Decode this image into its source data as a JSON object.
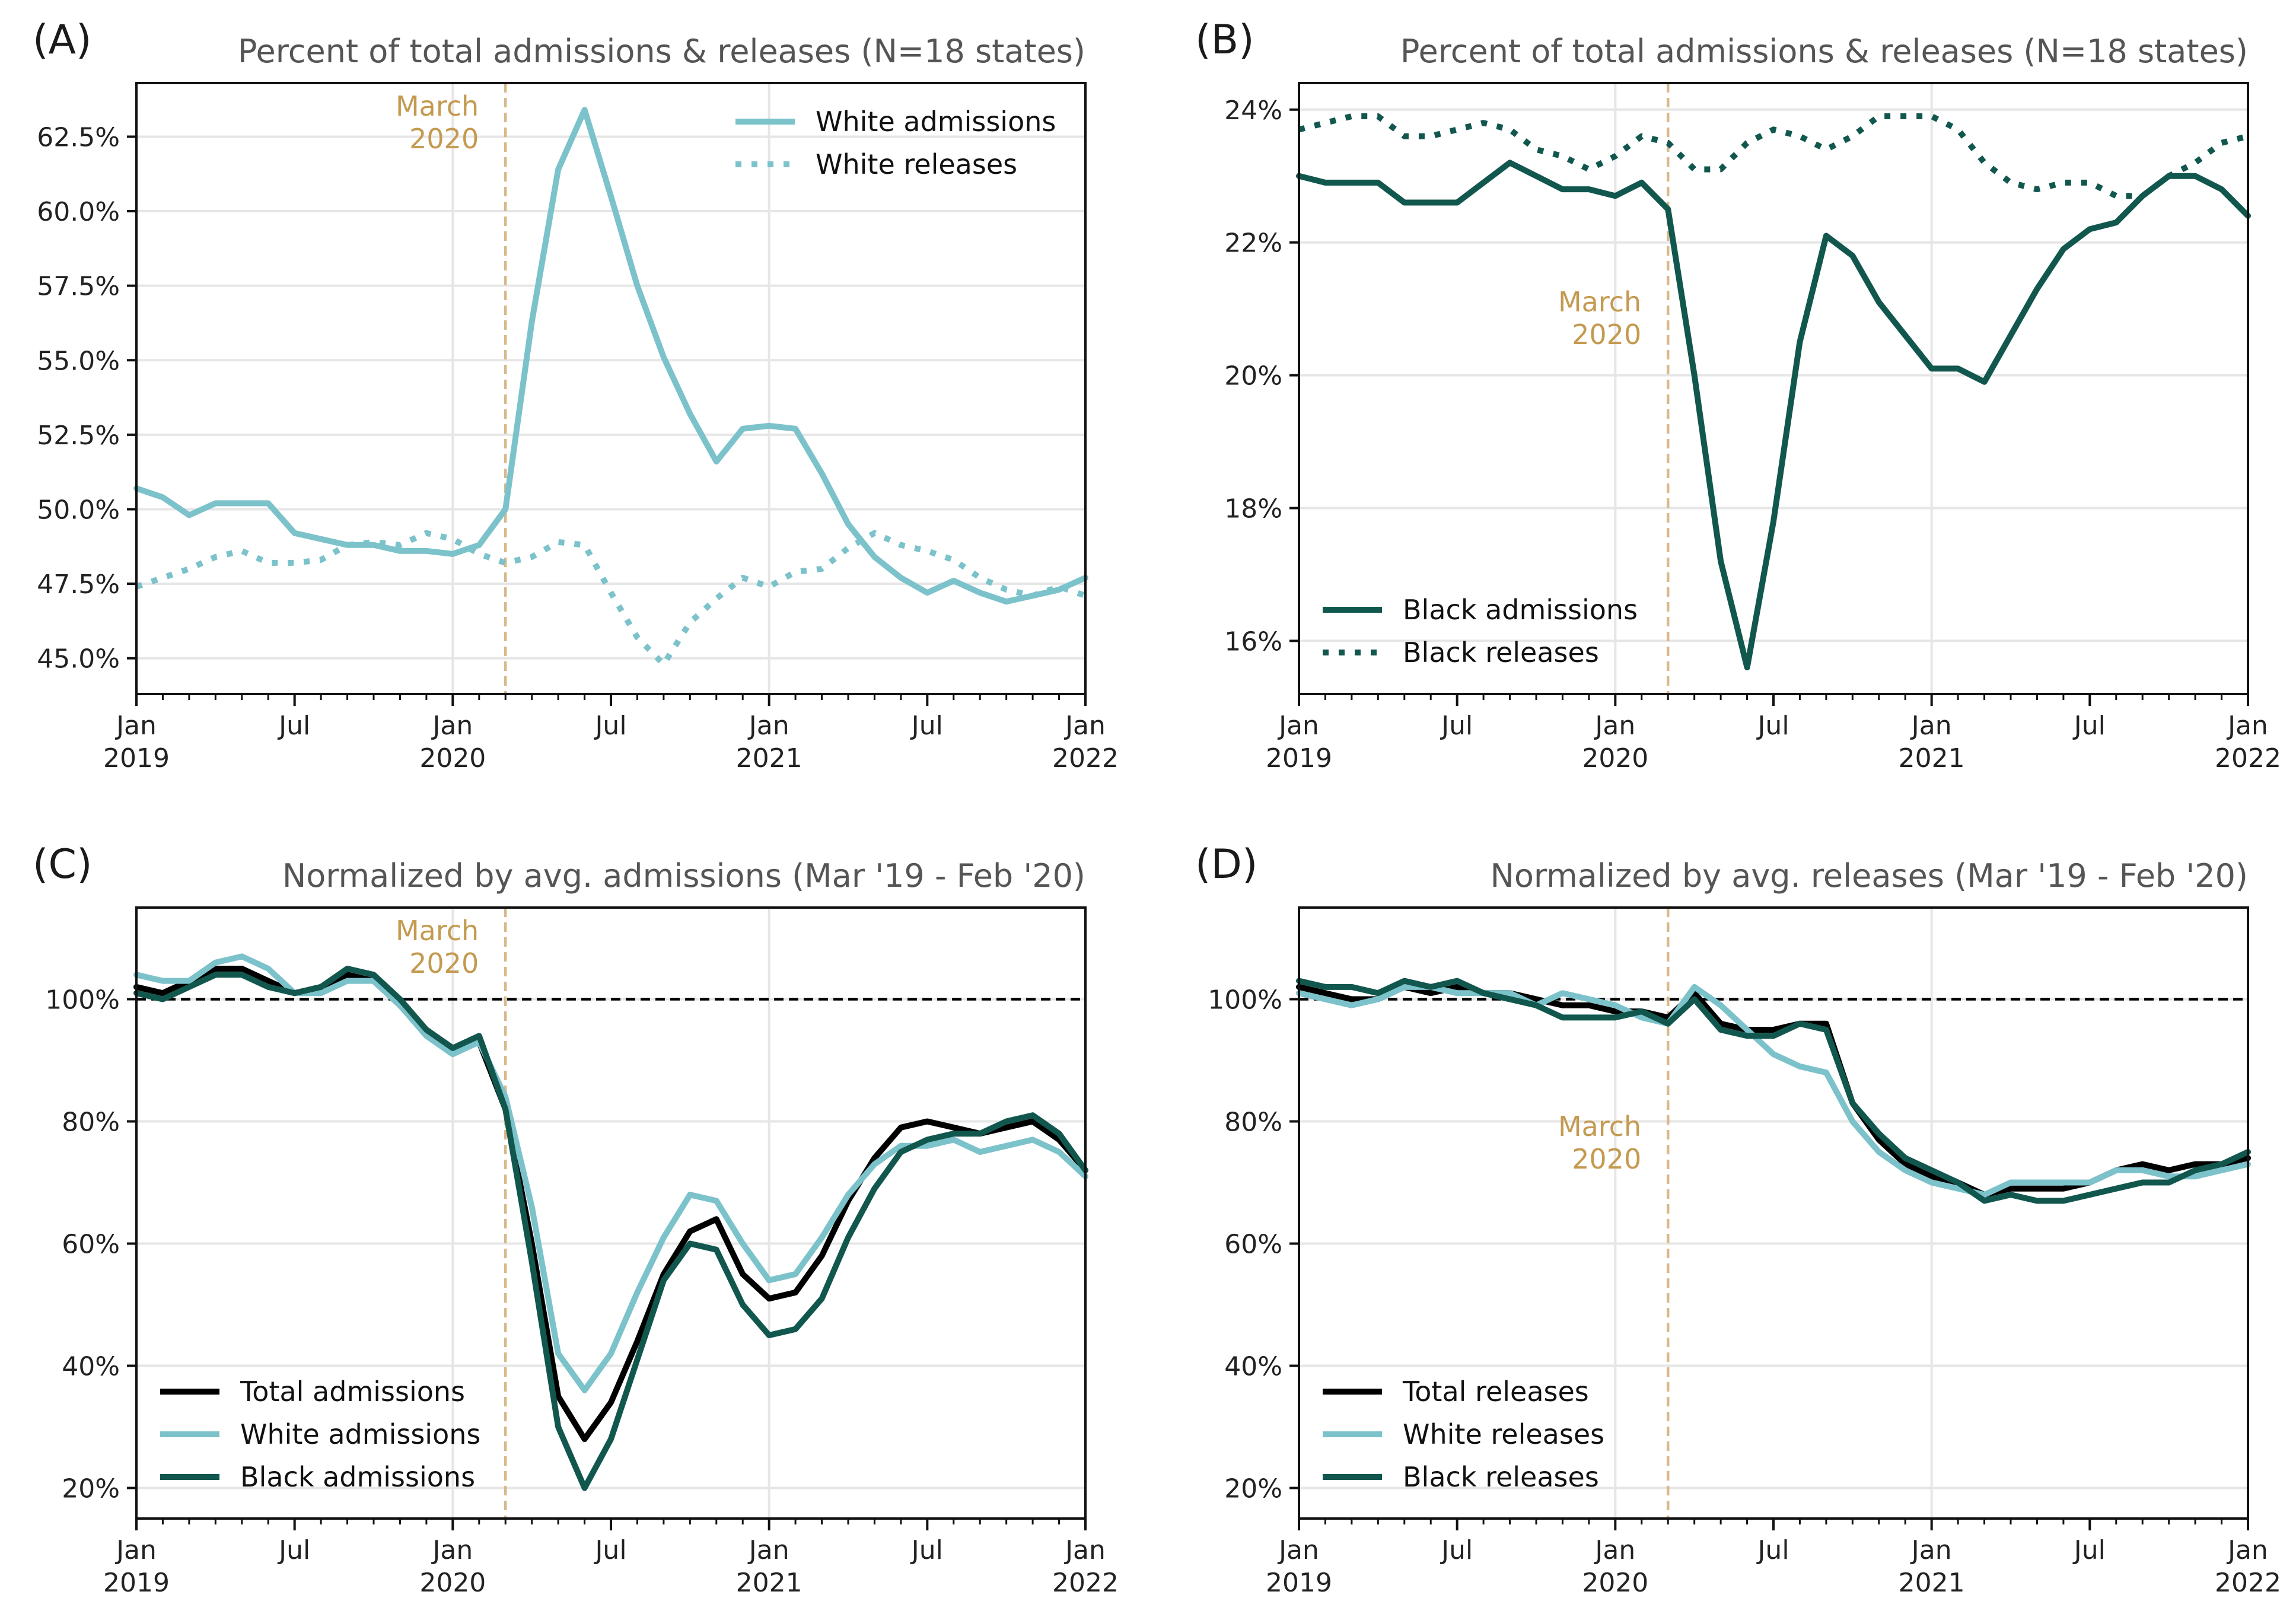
{
  "colors": {
    "total": "#000000",
    "white": "#7cc2cb",
    "black": "#11574e",
    "march_line": "#d9b98a",
    "march_text": "#c49a50",
    "grid": "#e6e6e6",
    "baseline": "#000000"
  },
  "x_ticks": [
    {
      "month": 0,
      "line1": "Jan",
      "line2": "2019"
    },
    {
      "month": 6,
      "line1": "Jul",
      "line2": ""
    },
    {
      "month": 12,
      "line1": "Jan",
      "line2": "2020"
    },
    {
      "month": 18,
      "line1": "Jul",
      "line2": ""
    },
    {
      "month": 24,
      "line1": "Jan",
      "line2": "2021"
    },
    {
      "month": 30,
      "line1": "Jul",
      "line2": ""
    },
    {
      "month": 36,
      "line1": "Jan",
      "line2": "2022"
    }
  ],
  "chart_data": [
    {
      "panel": "(A)",
      "type": "line",
      "title": "Percent of total admissions & releases (N=18 states)",
      "x_start": "2019-01",
      "x_end": "2022-01",
      "x_range": [
        0,
        36
      ],
      "ylim": [
        43.8,
        64.3
      ],
      "grid": true,
      "y_ticks": [
        45.0,
        47.5,
        50.0,
        52.5,
        55.0,
        57.5,
        60.0,
        62.5
      ],
      "y_tick_labels": [
        "45.0%",
        "47.5%",
        "50.0%",
        "52.5%",
        "55.0%",
        "57.5%",
        "60.0%",
        "62.5%"
      ],
      "annotation": {
        "line1": "March",
        "line2": "2020",
        "x": 14,
        "position": "top"
      },
      "legend": {
        "placement": "top-right"
      },
      "series": [
        {
          "name": "White admissions",
          "color_key": "white",
          "style": "solid",
          "x": [
            0,
            1,
            2,
            3,
            4,
            5,
            6,
            7,
            8,
            9,
            10,
            11,
            12,
            13,
            14,
            15,
            16,
            17,
            18,
            19,
            20,
            21,
            22,
            23,
            24,
            25,
            26,
            27,
            28,
            29,
            30,
            31,
            32,
            33,
            34,
            35,
            36
          ],
          "values": [
            50.7,
            50.4,
            49.8,
            50.2,
            50.2,
            50.2,
            49.2,
            49.0,
            48.8,
            48.8,
            48.6,
            48.6,
            48.5,
            48.8,
            50.0,
            56.3,
            61.4,
            63.4,
            60.5,
            57.5,
            55.1,
            53.2,
            51.6,
            52.7,
            52.8,
            52.7,
            51.2,
            49.5,
            48.4,
            47.7,
            47.2,
            47.6,
            47.2,
            46.9,
            47.1,
            47.3,
            47.7
          ]
        },
        {
          "name": "White releases",
          "color_key": "white",
          "style": "dotted",
          "x": [
            0,
            1,
            2,
            3,
            4,
            5,
            6,
            7,
            8,
            9,
            10,
            11,
            12,
            13,
            14,
            15,
            16,
            17,
            18,
            19,
            20,
            21,
            22,
            23,
            24,
            25,
            26,
            27,
            28,
            29,
            30,
            31,
            32,
            33,
            34,
            35,
            36
          ],
          "values": [
            47.4,
            47.7,
            48.0,
            48.4,
            48.6,
            48.2,
            48.2,
            48.3,
            48.8,
            48.9,
            48.8,
            49.2,
            49.0,
            48.5,
            48.2,
            48.4,
            48.9,
            48.8,
            47.2,
            45.7,
            44.8,
            46.2,
            47.0,
            47.7,
            47.4,
            47.9,
            48.0,
            48.7,
            49.2,
            48.8,
            48.6,
            48.3,
            47.7,
            47.3,
            47.1,
            47.4,
            47.1
          ]
        }
      ]
    },
    {
      "panel": "(B)",
      "type": "line",
      "title": "Percent of total admissions & releases (N=18 states)",
      "x_start": "2019-01",
      "x_end": "2022-01",
      "x_range": [
        0,
        36
      ],
      "ylim": [
        15.2,
        24.4
      ],
      "grid": true,
      "y_ticks": [
        16,
        18,
        20,
        22,
        24
      ],
      "y_tick_labels": [
        "16%",
        "18%",
        "20%",
        "22%",
        "24%"
      ],
      "annotation": {
        "line1": "March",
        "line2": "2020",
        "x": 14,
        "position": "middle"
      },
      "legend": {
        "placement": "bottom-left"
      },
      "series": [
        {
          "name": "Black admissions",
          "color_key": "black",
          "style": "solid",
          "x": [
            0,
            1,
            2,
            3,
            4,
            5,
            6,
            7,
            8,
            9,
            10,
            11,
            12,
            13,
            14,
            15,
            16,
            17,
            18,
            19,
            20,
            21,
            22,
            23,
            24,
            25,
            26,
            27,
            28,
            29,
            30,
            31,
            32,
            33,
            34,
            35,
            36
          ],
          "values": [
            23.0,
            22.9,
            22.9,
            22.9,
            22.6,
            22.6,
            22.6,
            22.9,
            23.2,
            23.0,
            22.8,
            22.8,
            22.7,
            22.9,
            22.5,
            20.0,
            17.2,
            15.6,
            17.8,
            20.5,
            22.1,
            21.8,
            21.1,
            20.6,
            20.1,
            20.1,
            19.9,
            20.6,
            21.3,
            21.9,
            22.2,
            22.3,
            22.7,
            23.0,
            23.0,
            22.8,
            22.4
          ]
        },
        {
          "name": "Black releases",
          "color_key": "black",
          "style": "dotted",
          "x": [
            0,
            1,
            2,
            3,
            4,
            5,
            6,
            7,
            8,
            9,
            10,
            11,
            12,
            13,
            14,
            15,
            16,
            17,
            18,
            19,
            20,
            21,
            22,
            23,
            24,
            25,
            26,
            27,
            28,
            29,
            30,
            31,
            32,
            33,
            34,
            35,
            36
          ],
          "values": [
            23.7,
            23.8,
            23.9,
            23.9,
            23.6,
            23.6,
            23.7,
            23.8,
            23.7,
            23.4,
            23.3,
            23.1,
            23.3,
            23.6,
            23.5,
            23.1,
            23.1,
            23.5,
            23.7,
            23.6,
            23.4,
            23.6,
            23.9,
            23.9,
            23.9,
            23.7,
            23.2,
            22.9,
            22.8,
            22.9,
            22.9,
            22.7,
            22.7,
            23.0,
            23.2,
            23.5,
            23.6
          ]
        }
      ]
    },
    {
      "panel": "(C)",
      "type": "line",
      "title": "Normalized by avg. admissions (Mar '19 - Feb '20)",
      "x_start": "2019-01",
      "x_end": "2022-01",
      "x_range": [
        0,
        36
      ],
      "ylim": [
        15,
        115
      ],
      "grid": true,
      "y_ticks": [
        20,
        40,
        60,
        80,
        100
      ],
      "y_tick_labels": [
        "20%",
        "40%",
        "60%",
        "80%",
        "100%"
      ],
      "reference_line": 100,
      "annotation": {
        "line1": "March",
        "line2": "2020",
        "x": 14,
        "position": "top"
      },
      "legend": {
        "placement": "bottom-left"
      },
      "series": [
        {
          "name": "Total admissions",
          "color_key": "total",
          "style": "solid",
          "x": [
            0,
            1,
            2,
            3,
            4,
            5,
            6,
            7,
            8,
            9,
            10,
            11,
            12,
            13,
            14,
            15,
            16,
            17,
            18,
            19,
            20,
            21,
            22,
            23,
            24,
            25,
            26,
            27,
            28,
            29,
            30,
            31,
            32,
            33,
            34,
            35,
            36
          ],
          "values": [
            102,
            101,
            103,
            105,
            105,
            103,
            101,
            102,
            104,
            103,
            99,
            95,
            92,
            93,
            82,
            60,
            35,
            28,
            34,
            44,
            55,
            62,
            64,
            55,
            51,
            52,
            58,
            67,
            74,
            79,
            80,
            79,
            78,
            79,
            80,
            77,
            72
          ]
        },
        {
          "name": "White admissions",
          "color_key": "white",
          "style": "solid",
          "x": [
            0,
            1,
            2,
            3,
            4,
            5,
            6,
            7,
            8,
            9,
            10,
            11,
            12,
            13,
            14,
            15,
            16,
            17,
            18,
            19,
            20,
            21,
            22,
            23,
            24,
            25,
            26,
            27,
            28,
            29,
            30,
            31,
            32,
            33,
            34,
            35,
            36
          ],
          "values": [
            104,
            103,
            103,
            106,
            107,
            105,
            101,
            101,
            103,
            103,
            99,
            94,
            91,
            93,
            84,
            66,
            42,
            36,
            42,
            52,
            61,
            68,
            67,
            60,
            54,
            55,
            61,
            68,
            73,
            76,
            76,
            77,
            75,
            76,
            77,
            75,
            71
          ]
        },
        {
          "name": "Black admissions",
          "color_key": "black",
          "style": "solid",
          "x": [
            0,
            1,
            2,
            3,
            4,
            5,
            6,
            7,
            8,
            9,
            10,
            11,
            12,
            13,
            14,
            15,
            16,
            17,
            18,
            19,
            20,
            21,
            22,
            23,
            24,
            25,
            26,
            27,
            28,
            29,
            30,
            31,
            32,
            33,
            34,
            35,
            36
          ],
          "values": [
            101,
            100,
            102,
            104,
            104,
            102,
            101,
            102,
            105,
            104,
            100,
            95,
            92,
            94,
            82,
            57,
            30,
            20,
            28,
            41,
            54,
            60,
            59,
            50,
            45,
            46,
            51,
            61,
            69,
            75,
            77,
            78,
            78,
            80,
            81,
            78,
            72
          ]
        }
      ]
    },
    {
      "panel": "(D)",
      "type": "line",
      "title": "Normalized by avg. releases (Mar '19 - Feb '20)",
      "x_start": "2019-01",
      "x_end": "2022-01",
      "x_range": [
        0,
        36
      ],
      "ylim": [
        15,
        115
      ],
      "grid": true,
      "y_ticks": [
        20,
        40,
        60,
        80,
        100
      ],
      "y_tick_labels": [
        "20%",
        "40%",
        "60%",
        "80%",
        "100%"
      ],
      "reference_line": 100,
      "annotation": {
        "line1": "March",
        "line2": "2020",
        "x": 14,
        "position": "middle"
      },
      "legend": {
        "placement": "bottom-left"
      },
      "series": [
        {
          "name": "Total releases",
          "color_key": "total",
          "style": "solid",
          "x": [
            0,
            1,
            2,
            3,
            4,
            5,
            6,
            7,
            8,
            9,
            10,
            11,
            12,
            13,
            14,
            15,
            16,
            17,
            18,
            19,
            20,
            21,
            22,
            23,
            24,
            25,
            26,
            27,
            28,
            29,
            30,
            31,
            32,
            33,
            34,
            35,
            36
          ],
          "values": [
            102,
            101,
            100,
            100,
            102,
            101,
            102,
            101,
            101,
            100,
            99,
            99,
            98,
            98,
            97,
            101,
            96,
            95,
            95,
            96,
            96,
            83,
            77,
            73,
            71,
            70,
            68,
            69,
            69,
            69,
            70,
            72,
            73,
            72,
            73,
            73,
            74
          ]
        },
        {
          "name": "White releases",
          "color_key": "white",
          "style": "solid",
          "x": [
            0,
            1,
            2,
            3,
            4,
            5,
            6,
            7,
            8,
            9,
            10,
            11,
            12,
            13,
            14,
            15,
            16,
            17,
            18,
            19,
            20,
            21,
            22,
            23,
            24,
            25,
            26,
            27,
            28,
            29,
            30,
            31,
            32,
            33,
            34,
            35,
            36
          ],
          "values": [
            101,
            100,
            99,
            100,
            102,
            102,
            101,
            101,
            101,
            99,
            101,
            100,
            99,
            97,
            96,
            102,
            99,
            95,
            91,
            89,
            88,
            80,
            75,
            72,
            70,
            69,
            68,
            70,
            70,
            70,
            70,
            72,
            72,
            71,
            71,
            72,
            73
          ]
        },
        {
          "name": "Black releases",
          "color_key": "black",
          "style": "solid",
          "x": [
            0,
            1,
            2,
            3,
            4,
            5,
            6,
            7,
            8,
            9,
            10,
            11,
            12,
            13,
            14,
            15,
            16,
            17,
            18,
            19,
            20,
            21,
            22,
            23,
            24,
            25,
            26,
            27,
            28,
            29,
            30,
            31,
            32,
            33,
            34,
            35,
            36
          ],
          "values": [
            103,
            102,
            102,
            101,
            103,
            102,
            103,
            101,
            100,
            99,
            97,
            97,
            97,
            98,
            96,
            100,
            95,
            94,
            94,
            96,
            95,
            83,
            78,
            74,
            72,
            70,
            67,
            68,
            67,
            67,
            68,
            69,
            70,
            70,
            72,
            73,
            75
          ]
        }
      ]
    }
  ]
}
